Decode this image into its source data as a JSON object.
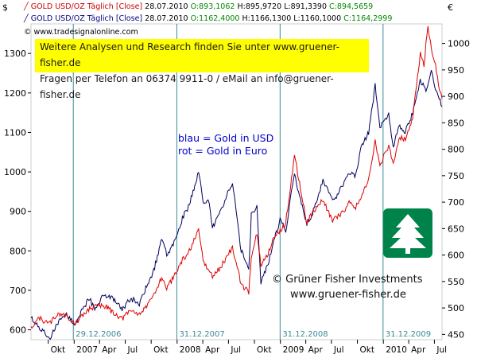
{
  "legend": {
    "red": {
      "name": "GOLD USD/OZ Täglich [Close]",
      "date": "28.07.2010",
      "open": "O:893,1062",
      "high": "H:895,9720",
      "low": "L:891,3390",
      "close": "C:894,5659"
    },
    "blue": {
      "name": "GOLD USD/OZ Täglich [Close]",
      "date": "28.07.2010",
      "open": "O:1162,4000",
      "high": "H:1166,1300",
      "low": "L:1160,1000",
      "close": "C:1164,2999"
    },
    "source": "© www.tradesignalonline.com"
  },
  "banner": {
    "line1": "Weitere Analysen und Research finden Sie unter www.gruener-fisher.de",
    "line2": "Fragen per Telefon an 06374 9911-0 / eMail an info@gruener-fisher.de"
  },
  "annotation": {
    "line1": "blau = Gold in USD",
    "line2": "rot = Gold in Euro"
  },
  "copyright": {
    "line1": "© Grüner Fisher Investments",
    "line2": "www.gruener-fisher.de"
  },
  "currency": {
    "left": "$",
    "right": "€"
  },
  "colors": {
    "usd": "#00005e",
    "eur": "#dd0000",
    "grid": "#3a8a96",
    "banner": "#ffff00",
    "logo": "#00834a"
  },
  "chart_data": {
    "type": "line",
    "x_start": "2006-08-01",
    "x_end": "2010-07-28",
    "y_left": {
      "label": "$",
      "ticks": [
        600,
        700,
        800,
        900,
        1000,
        1100,
        1200,
        1300
      ],
      "range": [
        575,
        1375
      ]
    },
    "y_right": {
      "label": "€",
      "ticks": [
        450,
        500,
        550,
        600,
        650,
        700,
        750,
        800,
        850,
        900,
        950,
        1000
      ],
      "range": [
        440,
        1037
      ]
    },
    "x_tick_labels": [
      "Okt",
      "2007",
      "Apr",
      "Jul",
      "Okt",
      "2008",
      "Apr",
      "Jul",
      "Okt",
      "2009",
      "Apr",
      "Jul",
      "Okt",
      "2010",
      "Apr",
      "Jul"
    ],
    "x_tick_dates": [
      "2006-10-01",
      "2007-01-01",
      "2007-04-01",
      "2007-07-01",
      "2007-10-01",
      "2008-01-01",
      "2008-04-01",
      "2008-07-01",
      "2008-10-01",
      "2009-01-01",
      "2009-04-01",
      "2009-07-01",
      "2009-10-01",
      "2010-01-01",
      "2010-04-01",
      "2010-07-01"
    ],
    "vlines": [
      {
        "date": "2006-12-29",
        "label": "29.12.2006"
      },
      {
        "date": "2007-12-31",
        "label": "31.12.2007"
      },
      {
        "date": "2008-12-31",
        "label": "31.12.2008"
      },
      {
        "date": "2009-12-31",
        "label": "31.12.2009"
      }
    ],
    "series": [
      {
        "name": "Gold in USD",
        "axis": "left",
        "color": "#00005e",
        "points": [
          [
            "2006-08-01",
            630
          ],
          [
            "2006-09-01",
            605
          ],
          [
            "2006-09-20",
            590
          ],
          [
            "2006-10-05",
            575
          ],
          [
            "2006-10-25",
            605
          ],
          [
            "2006-11-15",
            625
          ],
          [
            "2006-12-05",
            640
          ],
          [
            "2007-01-05",
            612
          ],
          [
            "2007-01-25",
            645
          ],
          [
            "2007-02-25",
            680
          ],
          [
            "2007-03-15",
            650
          ],
          [
            "2007-04-15",
            690
          ],
          [
            "2007-05-15",
            680
          ],
          [
            "2007-06-20",
            650
          ],
          [
            "2007-07-20",
            680
          ],
          [
            "2007-08-20",
            665
          ],
          [
            "2007-09-15",
            710
          ],
          [
            "2007-10-10",
            750
          ],
          [
            "2007-11-08",
            830
          ],
          [
            "2007-11-25",
            790
          ],
          [
            "2007-12-31",
            835
          ],
          [
            "2008-01-20",
            885
          ],
          [
            "2008-02-10",
            910
          ],
          [
            "2008-03-17",
            1000
          ],
          [
            "2008-04-05",
            915
          ],
          [
            "2008-04-20",
            935
          ],
          [
            "2008-05-05",
            860
          ],
          [
            "2008-06-01",
            895
          ],
          [
            "2008-07-15",
            975
          ],
          [
            "2008-08-15",
            800
          ],
          [
            "2008-09-11",
            760
          ],
          [
            "2008-09-20",
            890
          ],
          [
            "2008-10-10",
            910
          ],
          [
            "2008-10-24",
            720
          ],
          [
            "2008-11-15",
            760
          ],
          [
            "2008-12-15",
            840
          ],
          [
            "2008-12-31",
            880
          ],
          [
            "2009-01-20",
            850
          ],
          [
            "2009-02-20",
            1000
          ],
          [
            "2009-03-10",
            935
          ],
          [
            "2009-04-05",
            870
          ],
          [
            "2009-04-25",
            895
          ],
          [
            "2009-06-01",
            980
          ],
          [
            "2009-07-05",
            925
          ],
          [
            "2009-08-01",
            955
          ],
          [
            "2009-09-05",
            1000
          ],
          [
            "2009-09-25",
            990
          ],
          [
            "2009-10-15",
            1065
          ],
          [
            "2009-11-10",
            1100
          ],
          [
            "2009-12-03",
            1220
          ],
          [
            "2009-12-20",
            1110
          ],
          [
            "2010-01-05",
            1130
          ],
          [
            "2010-01-20",
            1150
          ],
          [
            "2010-02-05",
            1060
          ],
          [
            "2010-02-25",
            1120
          ],
          [
            "2010-03-20",
            1100
          ],
          [
            "2010-04-15",
            1150
          ],
          [
            "2010-05-12",
            1230
          ],
          [
            "2010-06-01",
            1210
          ],
          [
            "2010-06-20",
            1255
          ],
          [
            "2010-07-05",
            1210
          ],
          [
            "2010-07-15",
            1195
          ],
          [
            "2010-07-28",
            1165
          ]
        ]
      },
      {
        "name": "Gold in Euro",
        "axis": "right",
        "color": "#dd0000",
        "points": [
          [
            "2006-08-01",
            465
          ],
          [
            "2006-09-01",
            480
          ],
          [
            "2006-10-05",
            470
          ],
          [
            "2006-11-05",
            490
          ],
          [
            "2006-12-05",
            485
          ],
          [
            "2007-01-05",
            470
          ],
          [
            "2007-02-25",
            500
          ],
          [
            "2007-04-15",
            505
          ],
          [
            "2007-06-20",
            480
          ],
          [
            "2007-07-20",
            495
          ],
          [
            "2007-08-20",
            490
          ],
          [
            "2007-09-15",
            500
          ],
          [
            "2007-10-10",
            525
          ],
          [
            "2007-11-08",
            560
          ],
          [
            "2007-11-25",
            535
          ],
          [
            "2007-12-31",
            570
          ],
          [
            "2008-01-20",
            590
          ],
          [
            "2008-02-10",
            605
          ],
          [
            "2008-03-17",
            645
          ],
          [
            "2008-04-05",
            585
          ],
          [
            "2008-05-05",
            560
          ],
          [
            "2008-06-01",
            575
          ],
          [
            "2008-07-15",
            615
          ],
          [
            "2008-08-15",
            545
          ],
          [
            "2008-09-11",
            530
          ],
          [
            "2008-09-20",
            600
          ],
          [
            "2008-10-10",
            640
          ],
          [
            "2008-10-24",
            580
          ],
          [
            "2008-11-15",
            600
          ],
          [
            "2008-12-15",
            640
          ],
          [
            "2008-12-31",
            645
          ],
          [
            "2009-01-20",
            660
          ],
          [
            "2009-02-20",
            790
          ],
          [
            "2009-03-10",
            735
          ],
          [
            "2009-04-05",
            660
          ],
          [
            "2009-04-25",
            680
          ],
          [
            "2009-06-01",
            705
          ],
          [
            "2009-07-05",
            665
          ],
          [
            "2009-08-01",
            675
          ],
          [
            "2009-09-05",
            700
          ],
          [
            "2009-09-25",
            690
          ],
          [
            "2009-10-15",
            710
          ],
          [
            "2009-11-10",
            740
          ],
          [
            "2009-12-03",
            815
          ],
          [
            "2009-12-20",
            770
          ],
          [
            "2010-01-05",
            790
          ],
          [
            "2010-01-20",
            805
          ],
          [
            "2010-02-05",
            775
          ],
          [
            "2010-02-25",
            820
          ],
          [
            "2010-03-20",
            820
          ],
          [
            "2010-04-15",
            860
          ],
          [
            "2010-05-12",
            980
          ],
          [
            "2010-05-25",
            960
          ],
          [
            "2010-06-08",
            1035
          ],
          [
            "2010-06-20",
            990
          ],
          [
            "2010-07-05",
            960
          ],
          [
            "2010-07-15",
            925
          ],
          [
            "2010-07-28",
            895
          ]
        ]
      }
    ]
  }
}
